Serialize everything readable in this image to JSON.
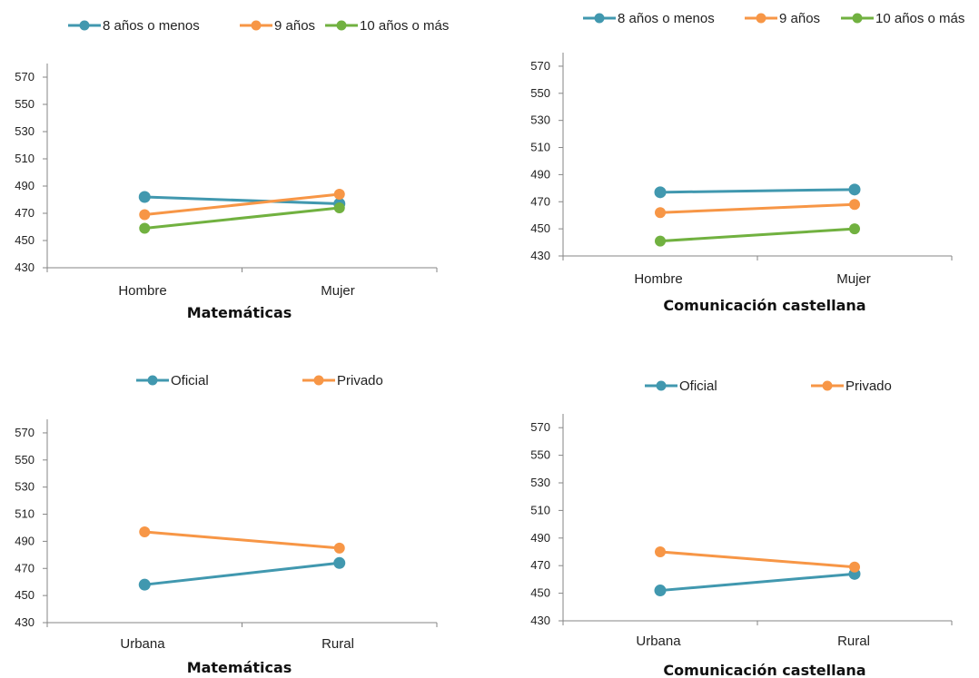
{
  "chart_data": [
    {
      "type": "line",
      "title": "Matemáticas",
      "categories": [
        "Hombre",
        "Mujer"
      ],
      "ylim": [
        430,
        580
      ],
      "yticks": [
        430,
        450,
        470,
        490,
        510,
        530,
        550,
        570
      ],
      "grid": false,
      "legend_position": "top",
      "series": [
        {
          "name": "8 años o menos",
          "values": [
            482,
            477
          ],
          "color": "#4198AF"
        },
        {
          "name": "9 años",
          "values": [
            469,
            484
          ],
          "color": "#F79646"
        },
        {
          "name": "10 años o más",
          "values": [
            459,
            474
          ],
          "color": "#71B140"
        }
      ]
    },
    {
      "type": "line",
      "title": "Comunicación castellana",
      "categories": [
        "Hombre",
        "Mujer"
      ],
      "ylim": [
        430,
        580
      ],
      "yticks": [
        430,
        450,
        470,
        490,
        510,
        530,
        550,
        570
      ],
      "grid": false,
      "legend_position": "top",
      "series": [
        {
          "name": "8 años o menos",
          "values": [
            477,
            479
          ],
          "color": "#4198AF"
        },
        {
          "name": "9 años",
          "values": [
            462,
            468
          ],
          "color": "#F79646"
        },
        {
          "name": "10 años o más",
          "values": [
            441,
            450
          ],
          "color": "#71B140"
        }
      ]
    },
    {
      "type": "line",
      "title": "Matemáticas",
      "categories": [
        "Urbana",
        "Rural"
      ],
      "ylim": [
        430,
        580
      ],
      "yticks": [
        430,
        450,
        470,
        490,
        510,
        530,
        550,
        570
      ],
      "grid": false,
      "legend_position": "top",
      "series": [
        {
          "name": "Oficial",
          "values": [
            458,
            474
          ],
          "color": "#4198AF"
        },
        {
          "name": "Privado",
          "values": [
            497,
            485
          ],
          "color": "#F79646"
        }
      ]
    },
    {
      "type": "line",
      "title": "Comunicación castellana",
      "categories": [
        "Urbana",
        "Rural"
      ],
      "ylim": [
        430,
        580
      ],
      "yticks": [
        430,
        450,
        470,
        490,
        510,
        530,
        550,
        570
      ],
      "grid": false,
      "legend_position": "top",
      "series": [
        {
          "name": "Oficial",
          "values": [
            452,
            464
          ],
          "color": "#4198AF"
        },
        {
          "name": "Privado",
          "values": [
            480,
            469
          ],
          "color": "#F79646"
        }
      ]
    }
  ]
}
